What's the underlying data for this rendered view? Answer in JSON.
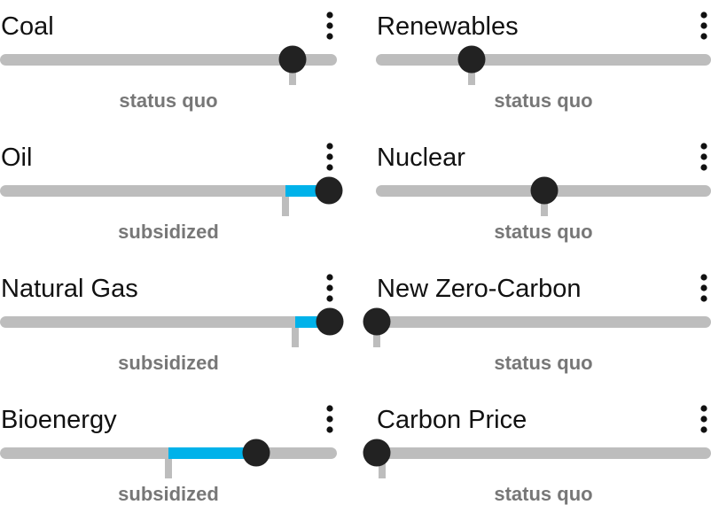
{
  "sliders": [
    {
      "label": "Coal",
      "status": "status quo"
    },
    {
      "label": "Renewables",
      "status": "status quo"
    },
    {
      "label": "Oil",
      "status": "subsidized"
    },
    {
      "label": "Nuclear",
      "status": "status quo"
    },
    {
      "label": "Natural Gas",
      "status": "subsidized"
    },
    {
      "label": "New Zero-Carbon",
      "status": "status quo"
    },
    {
      "label": "Bioenergy",
      "status": "subsidized"
    },
    {
      "label": "Carbon Price",
      "status": "status quo"
    }
  ]
}
